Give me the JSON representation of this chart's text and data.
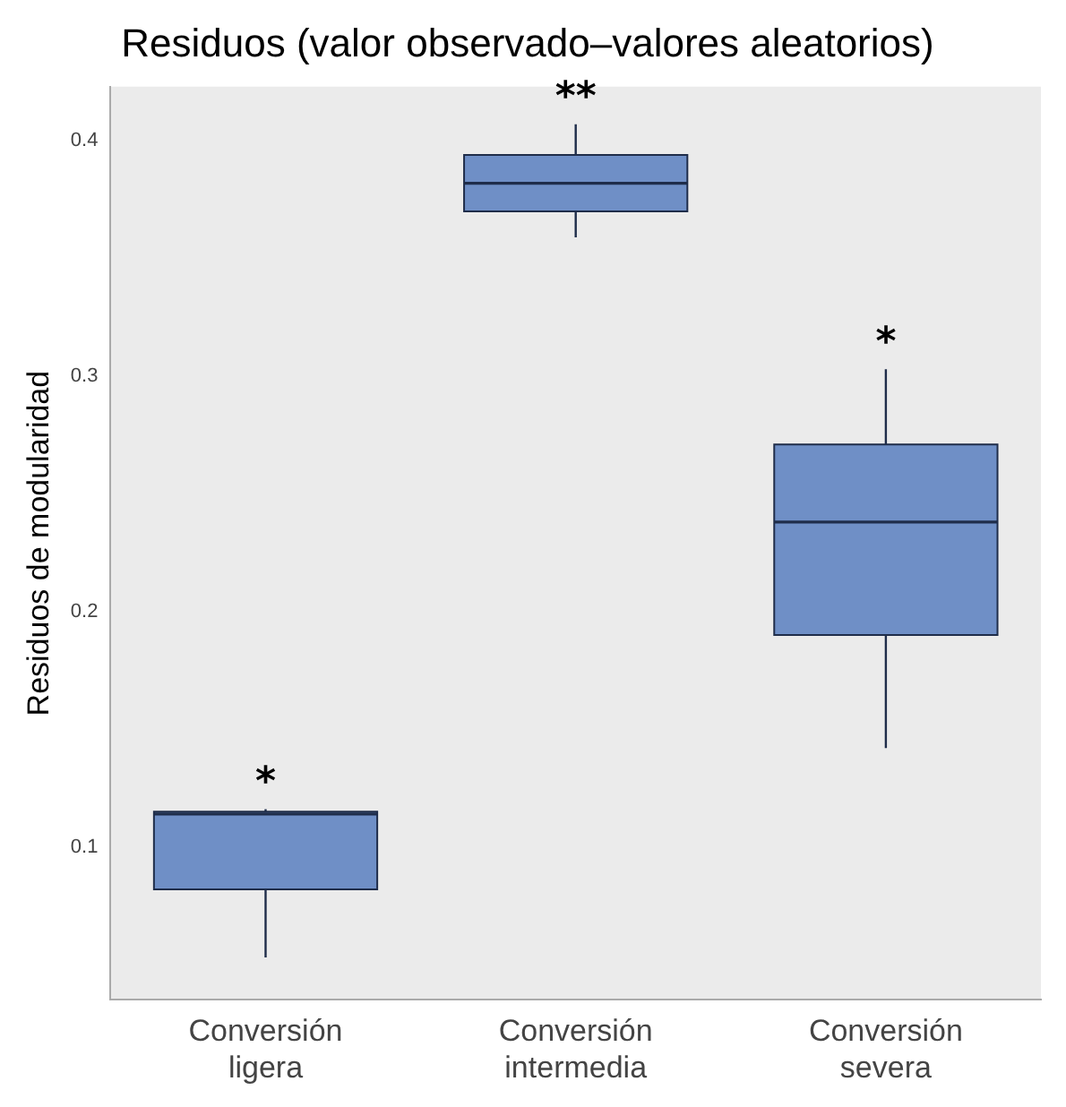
{
  "chart_data": {
    "type": "box",
    "title": "Residuos (valor observado–valores aleatorios)",
    "ylabel": "Residuos de modularidad",
    "categories": [
      "Conversión ligera",
      "Conversión intermedia",
      "Conversión severa"
    ],
    "boxes": [
      {
        "low": 0.053,
        "q1": 0.082,
        "median": 0.114,
        "q3": 0.115,
        "high": 0.116
      },
      {
        "low": 0.359,
        "q1": 0.37,
        "median": 0.382,
        "q3": 0.394,
        "high": 0.407
      },
      {
        "low": 0.142,
        "q1": 0.19,
        "median": 0.238,
        "q3": 0.271,
        "high": 0.303
      }
    ],
    "color": "#6f8fc6",
    "ylim": [
      0.035,
      0.423
    ],
    "yticks": [
      0.1,
      0.2,
      0.3,
      0.4
    ],
    "annotations": [
      "*",
      "**",
      "*"
    ]
  }
}
